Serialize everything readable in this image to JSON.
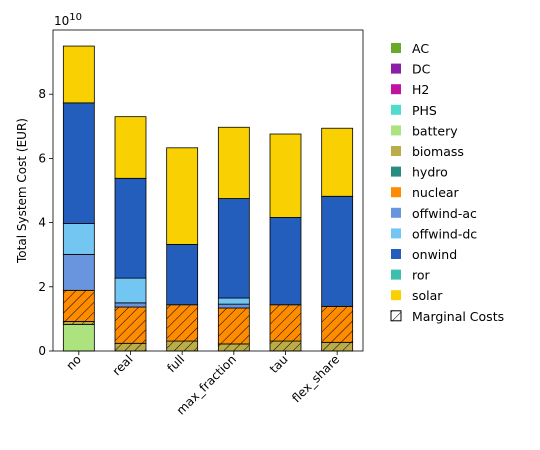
{
  "chart_data": {
    "type": "bar",
    "stacked": true,
    "ylabel": "Total System Cost (EUR)",
    "y_multiplier": "1e10",
    "ylim": [
      0,
      100000000000
    ],
    "yticks": [
      0,
      20000000000,
      40000000000,
      60000000000,
      80000000000
    ],
    "ytick_labels": [
      "0",
      "2",
      "4",
      "6",
      "8"
    ],
    "categories": [
      "no",
      "real",
      "full",
      "max_fraction",
      "tau",
      "flex_share"
    ],
    "legend_position": "right",
    "series": [
      {
        "name": "AC",
        "color": "#6aaa2a",
        "values": [
          0,
          0,
          0,
          0,
          0,
          0
        ]
      },
      {
        "name": "DC",
        "color": "#8b1fa8",
        "values": [
          0,
          0,
          0,
          0,
          0,
          0
        ]
      },
      {
        "name": "H2",
        "color": "#bf13a0",
        "values": [
          0,
          0,
          0,
          0,
          0,
          0
        ]
      },
      {
        "name": "PHS",
        "color": "#51dbcc",
        "values": [
          0,
          0,
          0,
          0,
          0,
          0
        ]
      },
      {
        "name": "battery",
        "color": "#ace37f",
        "values": [
          8300000000,
          0,
          0,
          0,
          0,
          0
        ]
      },
      {
        "name": "biomass",
        "color": "#baac46",
        "values": [
          900000000,
          2400000000,
          3100000000,
          2200000000,
          3100000000,
          2700000000
        ],
        "hatched": [
          true,
          true,
          true,
          true,
          true,
          true
        ]
      },
      {
        "name": "hydro",
        "color": "#298c81",
        "values": [
          0,
          0,
          0,
          0,
          0,
          0
        ]
      },
      {
        "name": "nuclear",
        "color": "#ff8c00",
        "values": [
          9700000000,
          11300000000,
          11300000000,
          11200000000,
          11300000000,
          11200000000
        ],
        "hatched": [
          true,
          true,
          true,
          true,
          true,
          true
        ]
      },
      {
        "name": "offwind-ac",
        "color": "#6895dd",
        "values": [
          11200000000,
          1300000000,
          0,
          1200000000,
          0,
          0
        ]
      },
      {
        "name": "offwind-dc",
        "color": "#74c6f2",
        "values": [
          9600000000,
          7700000000,
          0,
          1900000000,
          0,
          0
        ]
      },
      {
        "name": "onwind",
        "color": "#235ebc",
        "values": [
          37600000000,
          31100000000,
          18800000000,
          31000000000,
          27200000000,
          34300000000
        ]
      },
      {
        "name": "ror",
        "color": "#3dbfb0",
        "values": [
          0,
          0,
          0,
          0,
          0,
          0
        ]
      },
      {
        "name": "solar",
        "color": "#f9d002",
        "values": [
          17700000000,
          19200000000,
          30100000000,
          22200000000,
          26000000000,
          21200000000
        ]
      }
    ],
    "marginal_costs_label": "Marginal Costs"
  }
}
